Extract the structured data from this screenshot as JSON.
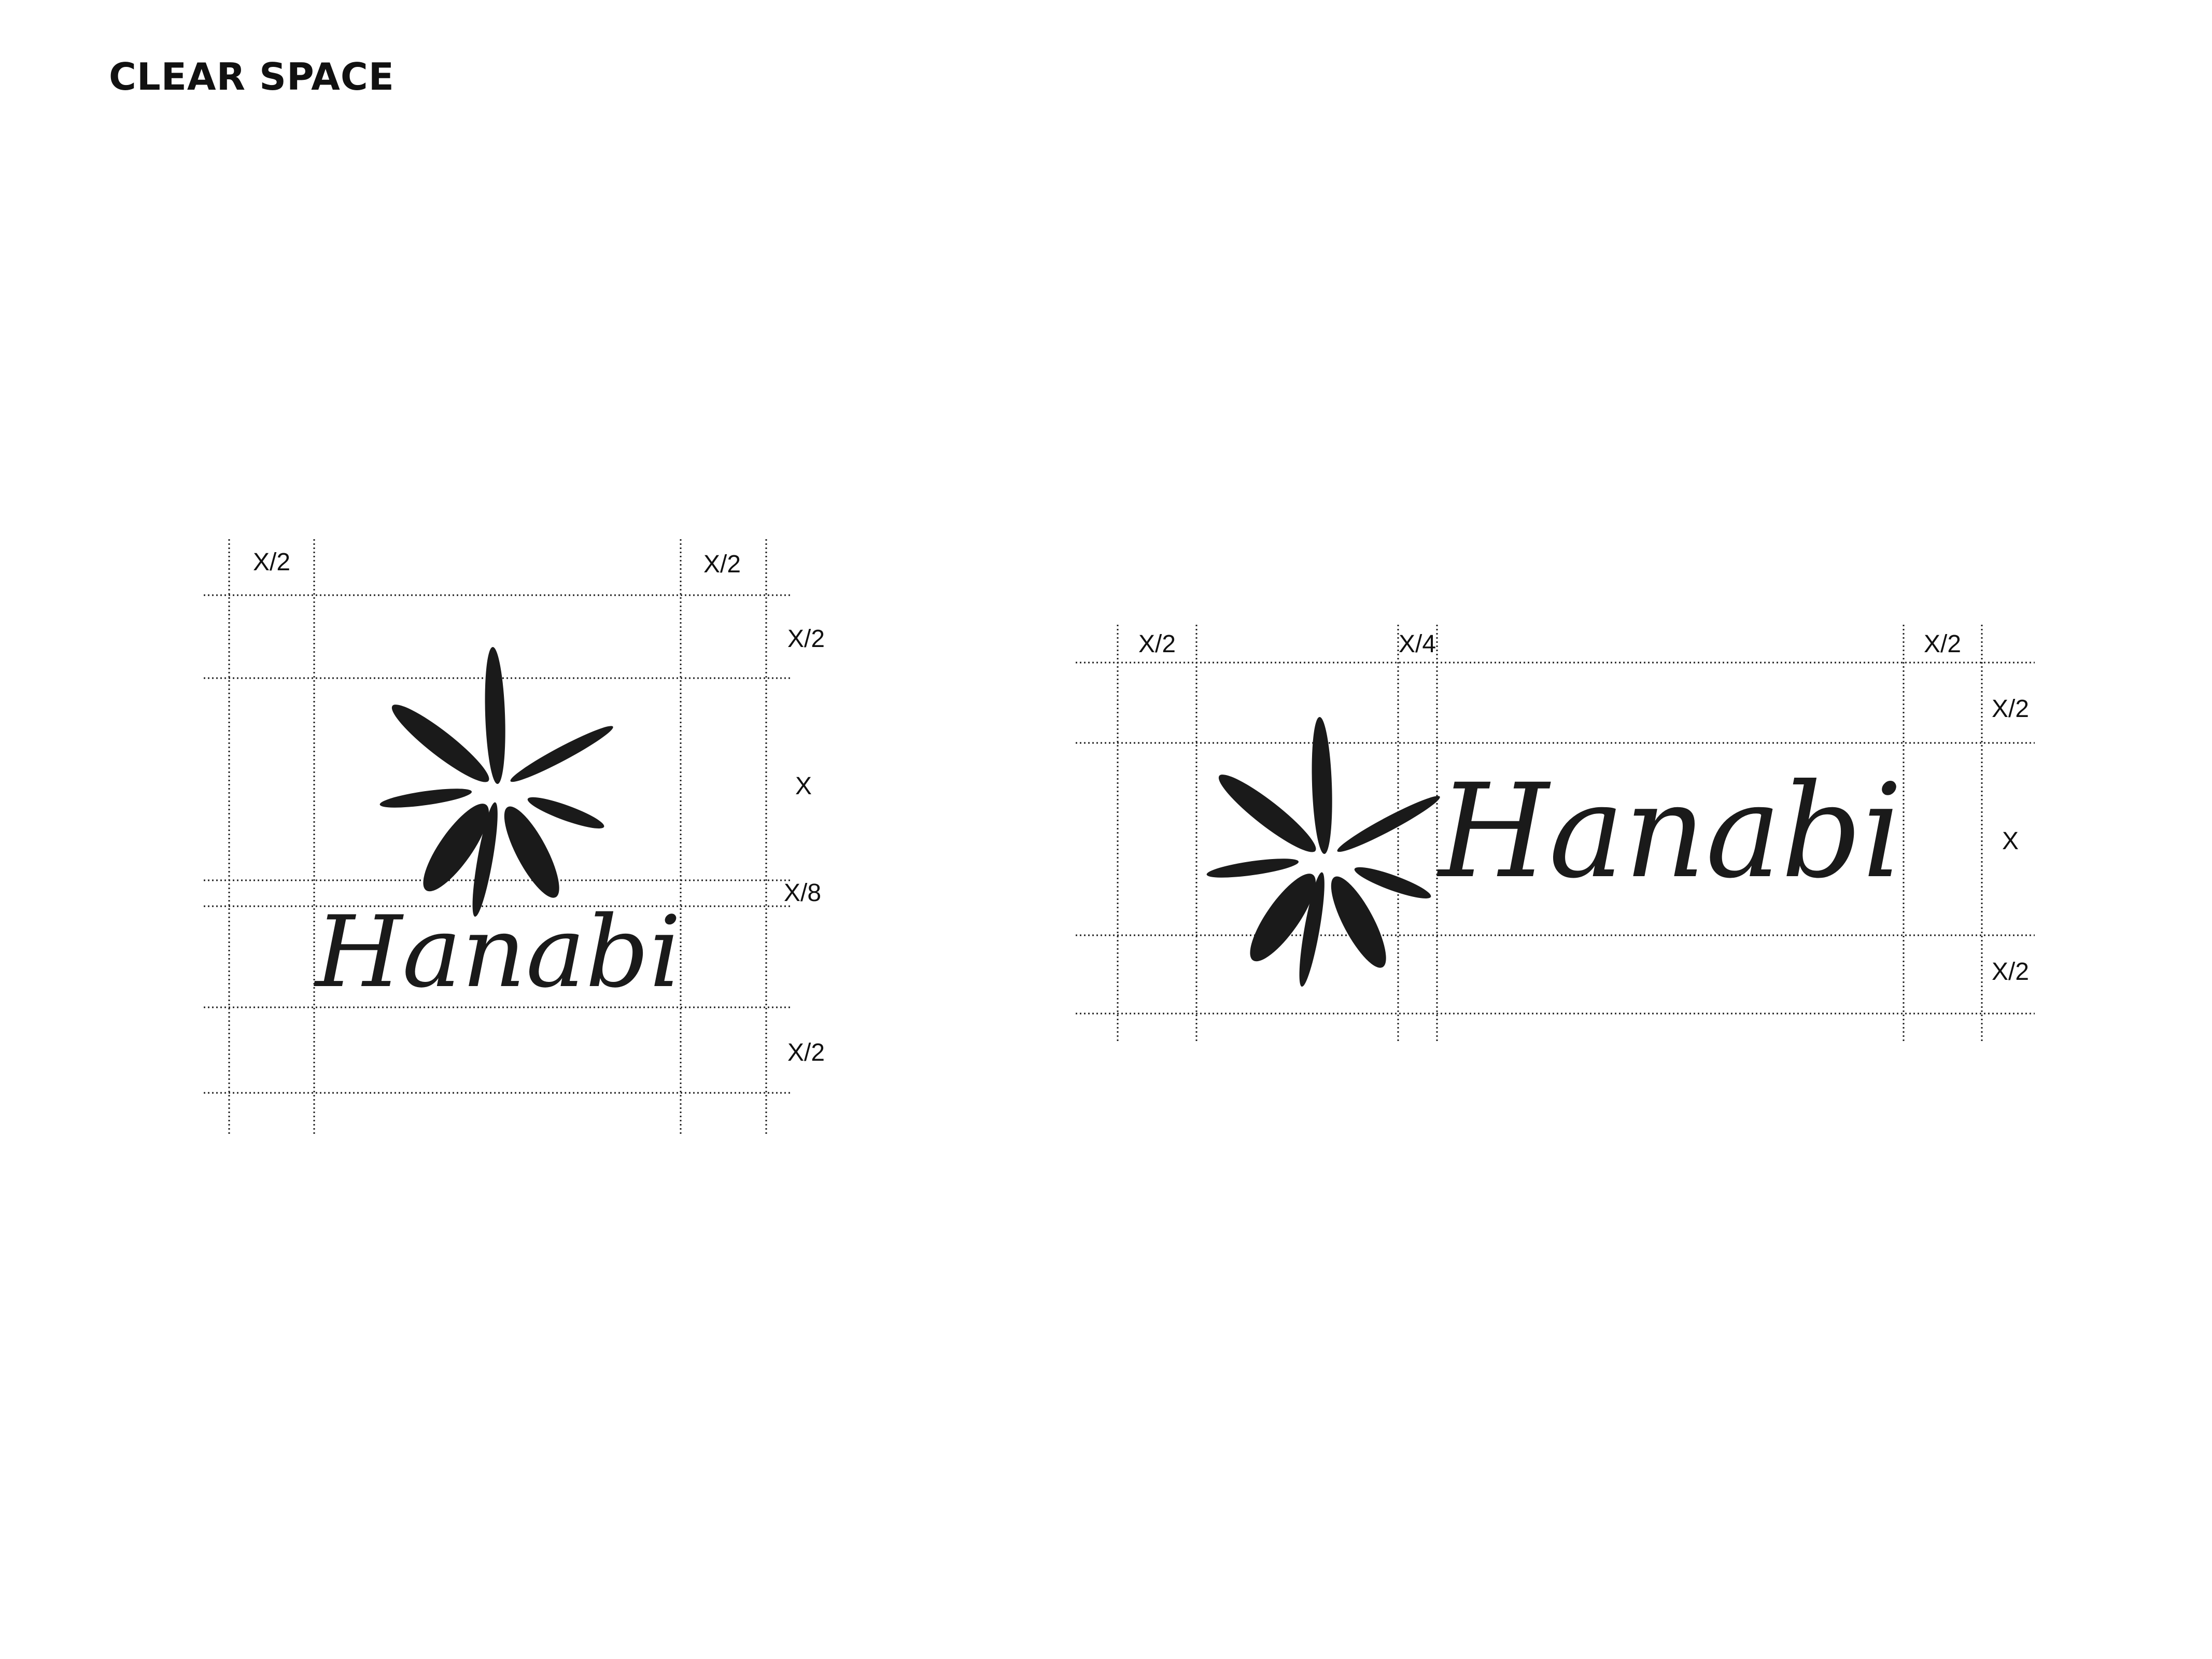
{
  "page": {
    "title": "CLEAR SPACE"
  },
  "vertical_lockup": {
    "wordmark": "Hanabi",
    "label_top_left": "X/2",
    "label_top_right": "X/2",
    "label_right_top": "X/2",
    "label_right_symbol": "X",
    "label_right_gap": "X/8",
    "label_right_bottom": "X/2"
  },
  "horizontal_lockup": {
    "wordmark": "Hanabi",
    "label_top_left": "X/2",
    "label_top_gap": "X/4",
    "label_top_right": "X/2",
    "label_right_top": "X/2",
    "label_right_symbol": "X",
    "label_right_bottom": "X/2"
  },
  "icons": {
    "symbol": "firework-burst-icon"
  },
  "colors": {
    "ink": "#1a1a1a",
    "background": "#ffffff"
  }
}
